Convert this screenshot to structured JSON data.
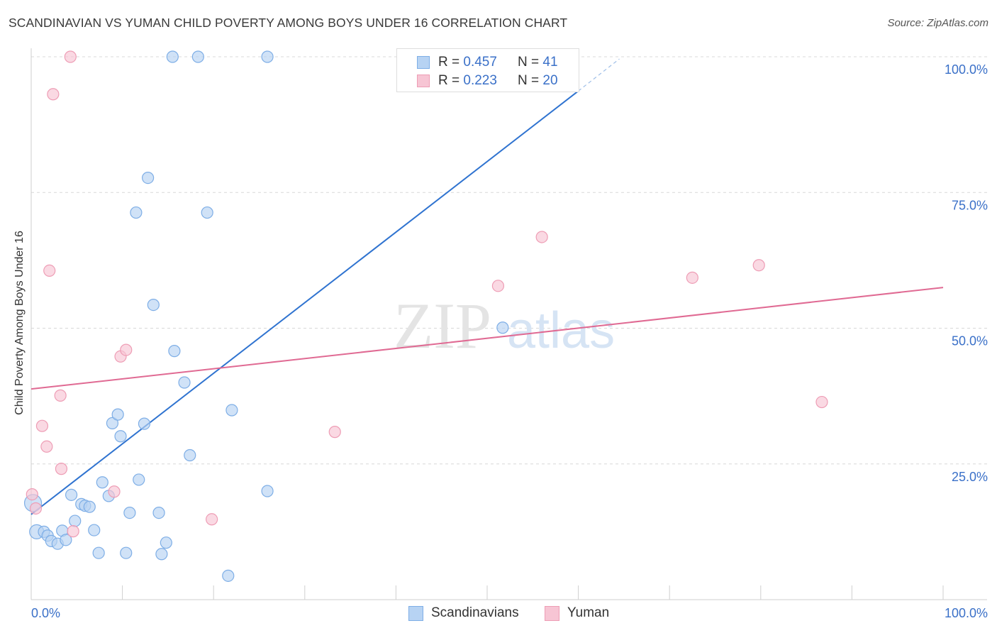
{
  "title": "SCANDINAVIAN VS YUMAN CHILD POVERTY AMONG BOYS UNDER 16 CORRELATION CHART",
  "source": "Source: ZipAtlas.com",
  "watermark": {
    "zip": "ZIP",
    "atlas": "atlas"
  },
  "colors": {
    "blue_fill": "#b7d3f3",
    "blue_stroke": "#7eaee6",
    "blue_line": "#2f73d0",
    "pink_fill": "#f7c5d4",
    "pink_stroke": "#ee9db5",
    "pink_line": "#e06a93",
    "grid": "#d8d8d8",
    "tick_text": "#3a70c8"
  },
  "legend": {
    "rows": [
      {
        "r_label": "R =",
        "r_value": "0.457",
        "n_label": "N =",
        "n_value": "41"
      },
      {
        "r_label": "R =",
        "r_value": "0.223",
        "n_label": "N =",
        "n_value": "20"
      }
    ]
  },
  "bottom_legend": [
    "Scandinavians",
    "Yuman"
  ],
  "chart_data": {
    "type": "scatter",
    "title": "SCANDINAVIAN VS YUMAN CHILD POVERTY AMONG BOYS UNDER 16 CORRELATION CHART",
    "xlabel": "",
    "ylabel": "Child Poverty Among Boys Under 16",
    "xlim": [
      0,
      100
    ],
    "ylim": [
      0,
      100
    ],
    "x_tick_labels": [
      {
        "value": 0,
        "label": "0.0%"
      },
      {
        "value": 100,
        "label": "100.0%"
      }
    ],
    "y_tick_labels": [
      {
        "value": 25,
        "label": "25.0%"
      },
      {
        "value": 50,
        "label": "50.0%"
      },
      {
        "value": 75,
        "label": "75.0%"
      },
      {
        "value": 100,
        "label": "100.0%"
      }
    ],
    "series": [
      {
        "name": "Scandinavians",
        "color": "blue",
        "r": 0.457,
        "n": 41,
        "trend": {
          "x0": 0,
          "y0": 15.7,
          "x1": 60,
          "y1": 93.7,
          "dash_to_x": 64.5,
          "dash_to_y": 99.6
        },
        "points": [
          [
            0.2,
            17.8,
            12
          ],
          [
            0.6,
            12.5,
            10
          ],
          [
            1.4,
            12.5,
            8
          ],
          [
            1.8,
            11.8,
            8
          ],
          [
            2.2,
            10.8,
            8
          ],
          [
            2.9,
            10.3,
            8
          ],
          [
            3.4,
            12.7,
            8
          ],
          [
            3.8,
            11.0,
            8
          ],
          [
            4.4,
            19.3,
            8
          ],
          [
            4.8,
            14.5,
            8
          ],
          [
            5.5,
            17.6,
            8
          ],
          [
            5.9,
            17.3,
            8
          ],
          [
            6.4,
            17.1,
            8
          ],
          [
            6.9,
            12.8,
            8
          ],
          [
            7.4,
            8.6,
            8
          ],
          [
            7.8,
            21.6,
            8
          ],
          [
            8.5,
            19.1,
            8
          ],
          [
            8.9,
            32.5,
            8
          ],
          [
            9.5,
            34.1,
            8
          ],
          [
            9.8,
            30.1,
            8
          ],
          [
            10.4,
            8.6,
            8
          ],
          [
            10.8,
            16.0,
            8
          ],
          [
            11.5,
            71.3,
            8
          ],
          [
            11.8,
            22.1,
            8
          ],
          [
            12.4,
            32.4,
            8
          ],
          [
            12.8,
            77.7,
            8
          ],
          [
            13.4,
            54.3,
            8
          ],
          [
            14.0,
            16.0,
            8
          ],
          [
            14.3,
            8.4,
            8
          ],
          [
            14.8,
            10.5,
            8
          ],
          [
            15.7,
            45.8,
            8
          ],
          [
            16.8,
            40.0,
            8
          ],
          [
            17.4,
            26.6,
            8
          ],
          [
            19.3,
            71.3,
            8
          ],
          [
            21.6,
            4.4,
            8
          ],
          [
            22.0,
            34.9,
            8
          ],
          [
            25.9,
            20.0,
            8
          ],
          [
            51.7,
            50.1,
            8
          ],
          [
            15.5,
            100.0,
            8
          ],
          [
            18.3,
            100.0,
            8
          ],
          [
            25.9,
            100.0,
            8
          ]
        ]
      },
      {
        "name": "Yuman",
        "color": "pink",
        "r": 0.223,
        "n": 20,
        "trend": {
          "x0": 0,
          "y0": 38.8,
          "x1": 100,
          "y1": 57.5
        },
        "points": [
          [
            0.1,
            19.4,
            8
          ],
          [
            0.5,
            16.8,
            8
          ],
          [
            1.2,
            32.0,
            8
          ],
          [
            1.7,
            28.2,
            8
          ],
          [
            2.0,
            60.6,
            8
          ],
          [
            2.4,
            93.1,
            8
          ],
          [
            3.2,
            37.6,
            8
          ],
          [
            3.3,
            24.1,
            8
          ],
          [
            4.3,
            100.0,
            8
          ],
          [
            4.6,
            12.6,
            8
          ],
          [
            9.1,
            19.9,
            8
          ],
          [
            9.8,
            44.8,
            8
          ],
          [
            10.4,
            46.0,
            8
          ],
          [
            19.8,
            14.8,
            8
          ],
          [
            33.3,
            30.9,
            8
          ],
          [
            51.2,
            57.8,
            8
          ],
          [
            56.0,
            66.8,
            8
          ],
          [
            72.5,
            59.3,
            8
          ],
          [
            79.8,
            61.6,
            8
          ],
          [
            86.7,
            36.4,
            8
          ]
        ]
      }
    ]
  }
}
